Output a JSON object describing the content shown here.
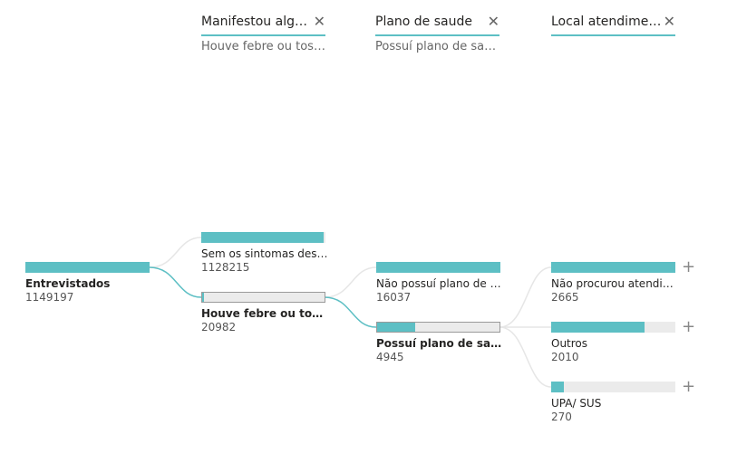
{
  "columns": [
    {
      "title": "Manifestou alguma sintoma",
      "subtitle": "Houve febre ou tosse"
    },
    {
      "title": "Plano de saude",
      "subtitle": "Possuí plano de saúde"
    },
    {
      "title": "Local atendimento",
      "subtitle": ""
    }
  ],
  "close_glyph": "✕",
  "plus_glyph": "+",
  "root": {
    "label": "Entrevistados",
    "value": "1149197",
    "fill": 1.0
  },
  "level1": [
    {
      "label": "Sem os sintomas descritos",
      "value": "1128215",
      "fill": 0.982
    },
    {
      "label": "Houve febre ou tosse",
      "value": "20982",
      "fill": 0.018
    }
  ],
  "level2": [
    {
      "label": "Não possuí plano de saúde",
      "value": "16037",
      "fill": 1.0
    },
    {
      "label": "Possuí plano de saúde",
      "value": "4945",
      "fill": 0.308
    }
  ],
  "level3": [
    {
      "label": "Não procurou atendimento",
      "value": "2665",
      "fill": 1.0
    },
    {
      "label": "Outros",
      "value": "2010",
      "fill": 0.754
    },
    {
      "label": "UPA/ SUS",
      "value": "270",
      "fill": 0.101
    }
  ],
  "colors": {
    "accent": "#5dbfc4",
    "track": "#ebebeb",
    "link_active": "#5dbfc4",
    "link_inactive": "#e6e6e6"
  }
}
